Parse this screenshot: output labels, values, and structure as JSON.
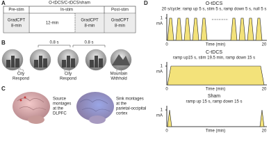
{
  "panel_a": {
    "label": "A",
    "condition": "O-tDCS/C-tDCS/sham",
    "phases": [
      "Pre-stim",
      "In-stim",
      "Post-stim"
    ],
    "pre_task": [
      "GradCPT",
      "8-min"
    ],
    "gap": "12-min",
    "in_task": [
      "GradCPT",
      "8-min"
    ],
    "post_task": [
      "GradCPT",
      "8-min"
    ]
  },
  "panel_b": {
    "label": "B",
    "intervals": [
      "0.8 s",
      "0.8 s"
    ],
    "responses": [
      [
        "City",
        "Respond"
      ],
      [
        "City",
        "Respond"
      ],
      [
        "Mountain",
        "Withhold"
      ]
    ]
  },
  "panel_c": {
    "label": "C",
    "source": [
      "Source",
      "montages",
      "at the",
      "DLPFC"
    ],
    "sink": [
      "Sink montages",
      "at the",
      "parietal-occipital",
      "cortex"
    ]
  },
  "panel_d": {
    "label": "D",
    "plots": [
      {
        "title": "O-tDCS",
        "subtitle": "20 s/cycle: ramp up 5 s, stim 5 s, ramp down 5 s, null 5 s",
        "unit": "1",
        "unit2": "mA",
        "start": "0",
        "xlabel": "Time (min)",
        "end": "20"
      },
      {
        "title": "C-tDCS",
        "subtitle": "ramp up15 s, stim 19.5 min, ramp down 15 s",
        "unit": "1",
        "unit2": "mA",
        "start": "0",
        "xlabel": "Time (min)",
        "end": "20"
      },
      {
        "title": "Sham",
        "subtitle": "ramp up 15 s, ramp down 15 s",
        "unit": "1",
        "unit2": "mA",
        "start": "0",
        "xlabel": "Time (min)",
        "end": "20"
      }
    ]
  }
}
